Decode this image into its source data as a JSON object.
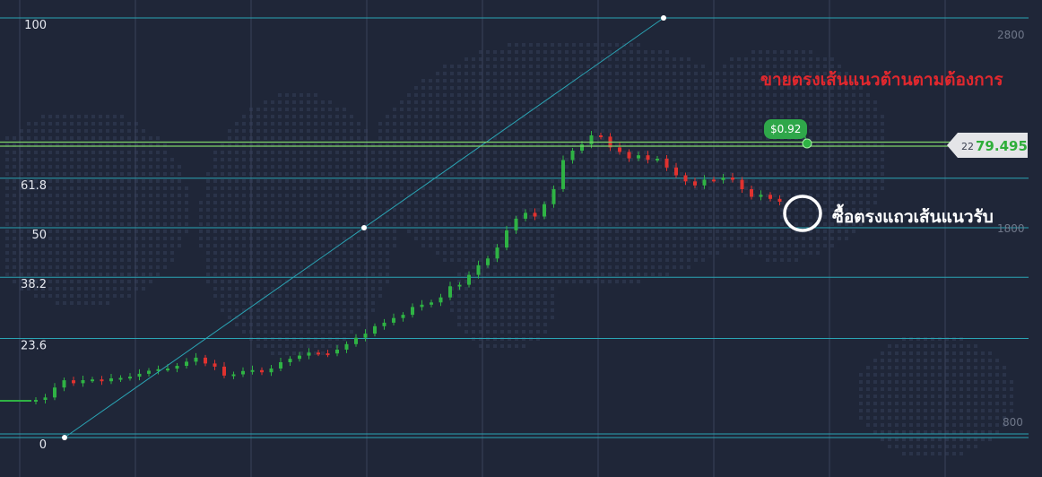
{
  "chart_data": {
    "type": "candlestick",
    "fib_levels": [
      {
        "label": "100",
        "value": 100
      },
      {
        "label": "61.8",
        "value": 61.8
      },
      {
        "label": "50",
        "value": 50
      },
      {
        "label": "38.2",
        "value": 38.2
      },
      {
        "label": "23.6",
        "value": 23.6
      },
      {
        "label": "0",
        "value": 0
      }
    ],
    "price_ticks": [
      "2800",
      "1800",
      "800"
    ],
    "current_price": {
      "prefix": "22",
      "main": "79.495"
    },
    "trade_tag": "$0.92",
    "annotations": {
      "sell_text": "ขายตรงเส้นแนวต้านตามต้องการ",
      "buy_text": "ซื้อตรงแถวเส้นแนวรับ"
    },
    "colors": {
      "background": "#1f2638",
      "up": "#2fb344",
      "down": "#e0322f",
      "fib_line": "#2aa4b4",
      "price_line": "#7fd36a",
      "annotation_red": "#e0282e"
    },
    "candle_series": [
      2.0,
      2.7,
      11.1,
      8.1,
      -3.3,
      3.4,
      0.8,
      -2.0,
      3.2,
      0.5,
      1.4,
      3.2,
      3.4,
      1.7,
      0.7,
      3.1,
      4.6,
      4.5,
      -6.5,
      -3.5,
      -10.0,
      1.4,
      3.7,
      1.0,
      -2.4,
      4.2,
      7.0,
      3.8,
      3.6,
      3.3,
      -0.8,
      -0.1,
      4.3,
      6.1,
      7.1,
      4.6,
      8.3,
      3.9,
      5.2,
      3.6,
      8.7,
      2.6,
      2.5,
      5.6,
      12.4,
      1.7,
      11.0,
      10.8,
      7.5,
      12.2,
      19.2,
      13.0,
      6.5,
      -4.1,
      13.8,
      16.8,
      32.4,
      10.5,
      6.8,
      10.2,
      -1.4,
      -12.0,
      -5.1,
      -7.1,
      3.4,
      -5.0,
      1.2,
      -9.8,
      -8.7,
      -6.8,
      -4.5,
      6.5,
      -0.5,
      2.8,
      -2.5,
      -10.5,
      -8.5,
      2.2,
      -4.5,
      -3.2
    ]
  }
}
